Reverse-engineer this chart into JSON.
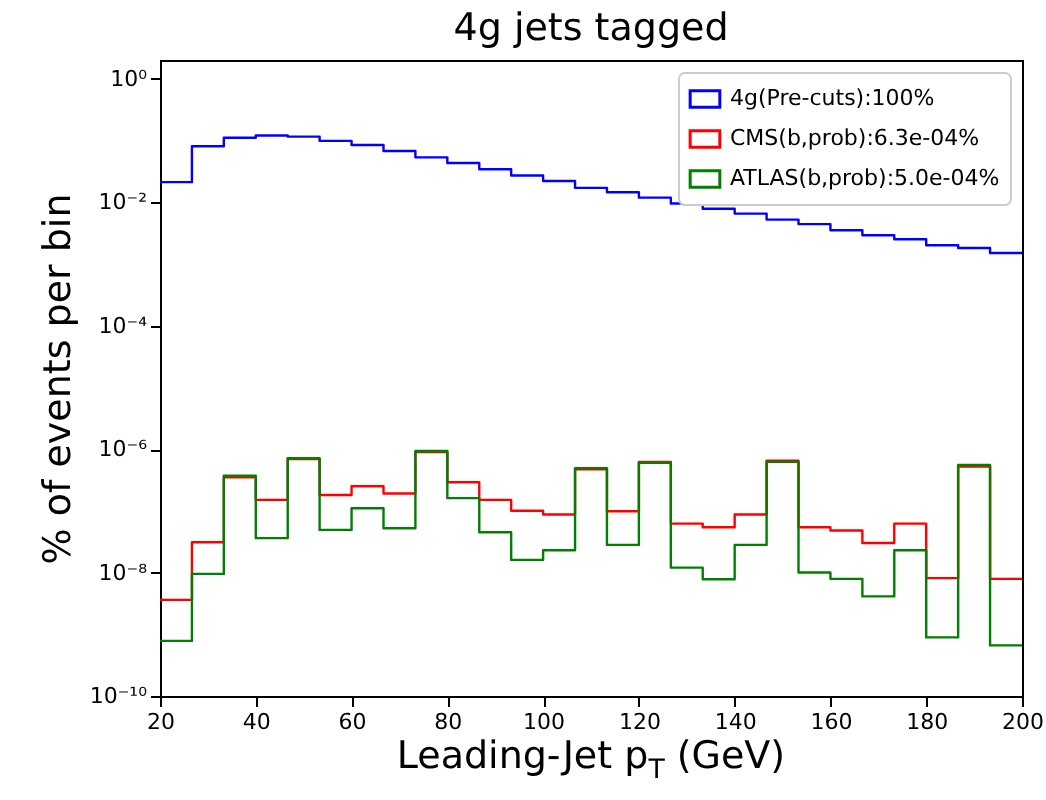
{
  "chart_data": {
    "type": "histogram",
    "title": "4g jets tagged",
    "xlabel": "Leading-Jet p$_{T}$ (GeV)",
    "ylabel": "% of events per bin",
    "bins": [
      20,
      26.67,
      33.33,
      40,
      46.67,
      53.33,
      60,
      66.67,
      73.33,
      80,
      86.67,
      93.33,
      100,
      106.67,
      113.33,
      120,
      126.67,
      133.33,
      140,
      146.67,
      153.33,
      160,
      166.67,
      173.33,
      180,
      186.67,
      193.33,
      200
    ],
    "series": [
      {
        "name": "4g(Pre-cuts):100%",
        "color": "#0000ff",
        "values": [
          0.021,
          0.08,
          0.11,
          0.12,
          0.115,
          0.098,
          0.084,
          0.067,
          0.053,
          0.043,
          0.034,
          0.027,
          0.022,
          0.017,
          0.0144,
          0.0118,
          0.0095,
          0.0078,
          0.0065,
          0.0052,
          0.0044,
          0.0035,
          0.0029,
          0.0025,
          0.002,
          0.0018,
          0.0015
        ]
      },
      {
        "name": "CMS(b,prob):6.3e-04%",
        "color": "#ff0000",
        "values": [
          3.6e-09,
          3.1e-08,
          3.5e-07,
          1.5e-07,
          6.9e-07,
          1.8e-07,
          2.5e-07,
          1.9e-07,
          8.9e-07,
          2.9e-07,
          1.5e-07,
          1e-07,
          8.7e-08,
          4.7e-07,
          9.8e-08,
          6.2e-07,
          6.2e-08,
          5.4e-08,
          8.7e-08,
          6.5e-07,
          5.4e-08,
          4.8e-08,
          3e-08,
          6.2e-08,
          8.1e-09,
          5.2e-07,
          7.9e-09
        ]
      },
      {
        "name": "ATLAS(b,prob):5.0e-04%",
        "color": "#008000",
        "values": [
          7.8e-10,
          9.5e-09,
          3.7e-07,
          3.6e-08,
          7.1e-07,
          4.9e-08,
          1.1e-07,
          5.2e-08,
          9.3e-07,
          1.6e-07,
          4.5e-08,
          1.6e-08,
          2.3e-08,
          4.9e-07,
          2.8e-08,
          6e-07,
          1.2e-08,
          7.8e-09,
          2.8e-08,
          6.2e-07,
          1e-08,
          7.9e-09,
          4.1e-09,
          2.3e-08,
          8.9e-10,
          5.5e-07,
          6.6e-10
        ]
      }
    ],
    "xlim": [
      20,
      200
    ],
    "xticks": [
      20,
      40,
      60,
      80,
      100,
      120,
      140,
      160,
      180,
      200
    ],
    "ylim": [
      1e-10,
      2
    ],
    "yticks": [
      {
        "value": 1,
        "label": "10⁰"
      },
      {
        "value": 0.01,
        "label": "10⁻²"
      },
      {
        "value": 0.0001,
        "label": "10⁻⁴"
      },
      {
        "value": 1e-06,
        "label": "10⁻⁶"
      },
      {
        "value": 1e-08,
        "label": "10⁻⁸"
      },
      {
        "value": 1e-10,
        "label": "10⁻¹⁰"
      }
    ],
    "log": "y",
    "legend": "top right",
    "grid": false
  }
}
